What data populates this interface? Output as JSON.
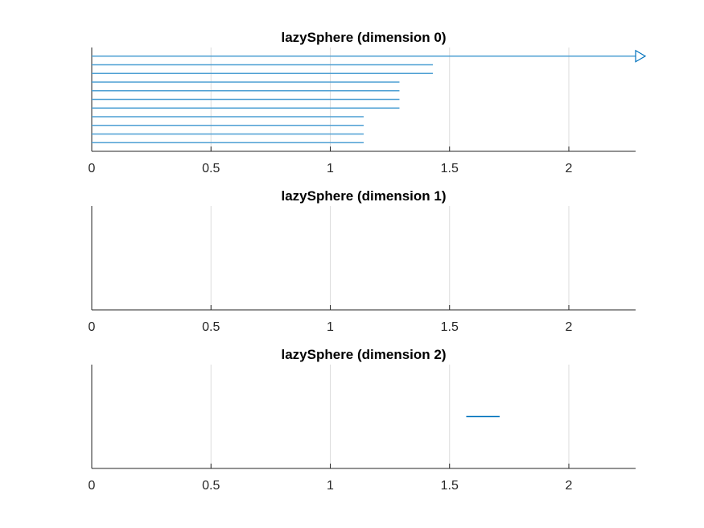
{
  "chart_data": [
    {
      "type": "barcode",
      "title": "lazySphere (dimension 0)",
      "xlim": [
        0,
        2.28
      ],
      "xticks": [
        "0",
        "0.5",
        "1",
        "1.5",
        "2"
      ],
      "xtick_values": [
        0,
        0.5,
        1,
        1.5,
        2
      ],
      "grid": true,
      "color": "#0072BD",
      "bars": [
        {
          "birth": 0,
          "death": 2.28,
          "infinite": true
        },
        {
          "birth": 0,
          "death": 1.43
        },
        {
          "birth": 0,
          "death": 1.43
        },
        {
          "birth": 0,
          "death": 1.29
        },
        {
          "birth": 0,
          "death": 1.29
        },
        {
          "birth": 0,
          "death": 1.29
        },
        {
          "birth": 0,
          "death": 1.29
        },
        {
          "birth": 0,
          "death": 1.14
        },
        {
          "birth": 0,
          "death": 1.14
        },
        {
          "birth": 0,
          "death": 1.14
        },
        {
          "birth": 0,
          "death": 1.14
        }
      ]
    },
    {
      "type": "barcode",
      "title": "lazySphere (dimension 1)",
      "xlim": [
        0,
        2.28
      ],
      "xticks": [
        "0",
        "0.5",
        "1",
        "1.5",
        "2"
      ],
      "xtick_values": [
        0,
        0.5,
        1,
        1.5,
        2
      ],
      "grid": true,
      "color": "#0072BD",
      "bars": []
    },
    {
      "type": "barcode",
      "title": "lazySphere (dimension 2)",
      "xlim": [
        0,
        2.28
      ],
      "xticks": [
        "0",
        "0.5",
        "1",
        "1.5",
        "2"
      ],
      "xtick_values": [
        0,
        0.5,
        1,
        1.5,
        2
      ],
      "grid": true,
      "color": "#0072BD",
      "bars": [
        {
          "birth": 1.57,
          "death": 1.71
        }
      ]
    }
  ]
}
